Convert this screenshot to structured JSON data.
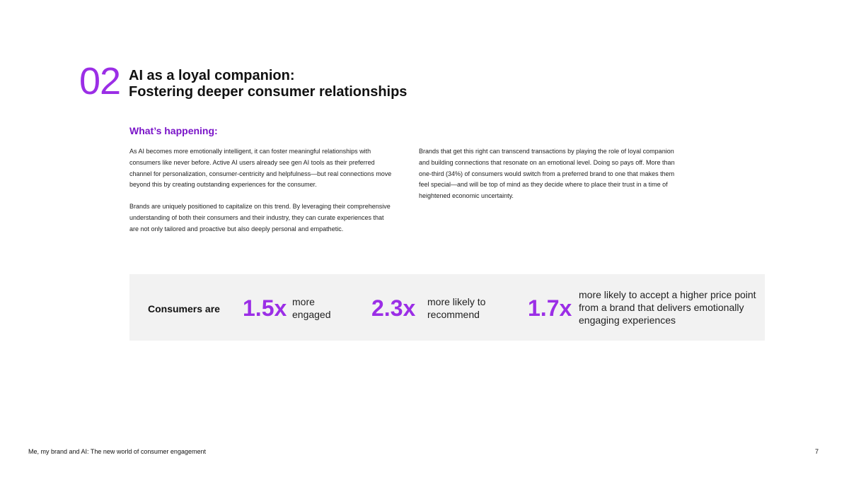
{
  "section": {
    "number": "02",
    "title_line1": "AI as a loyal companion:",
    "title_line2": "Fostering deeper consumer relationships"
  },
  "subhead": "What’s happening:",
  "left_column": [
    "As AI becomes more emotionally intelligent, it can foster meaningful relationships with consumers like never before. Active AI users already see gen AI tools as their preferred channel for personalization, consumer-centricity and helpfulness—but real connections move beyond this by creating outstanding experiences for the consumer.",
    "Brands are uniquely positioned to capitalize on this trend. By leveraging their comprehensive understanding of both their consumers and their industry, they can curate experiences that are not only tailored and proactive but also deeply personal and empathetic."
  ],
  "right_column": [
    "Brands that get this right can transcend transactions by playing the role of loyal companion and building connections that resonate on an emotional level. Doing so pays off. More than one-third (34%) of consumers would switch from a preferred brand to one that makes them feel special—and will be top of mind as they decide where to place their trust in a time of heightened economic uncertainty."
  ],
  "stats": {
    "label": "Consumers are",
    "items": [
      {
        "value": "1.5x",
        "description": "more engaged"
      },
      {
        "value": "2.3x",
        "description": "more likely to recommend"
      },
      {
        "value": "1.7x",
        "description": "more likely to accept a higher price point from a brand that delivers emotionally engaging experiences"
      }
    ]
  },
  "footer": {
    "title": "Me, my brand and AI: The new world of consumer engagement",
    "page": "7"
  },
  "colors": {
    "accent": "#9b2ee6",
    "subhead": "#7a14c8",
    "stat_background": "#f2f2f2"
  }
}
